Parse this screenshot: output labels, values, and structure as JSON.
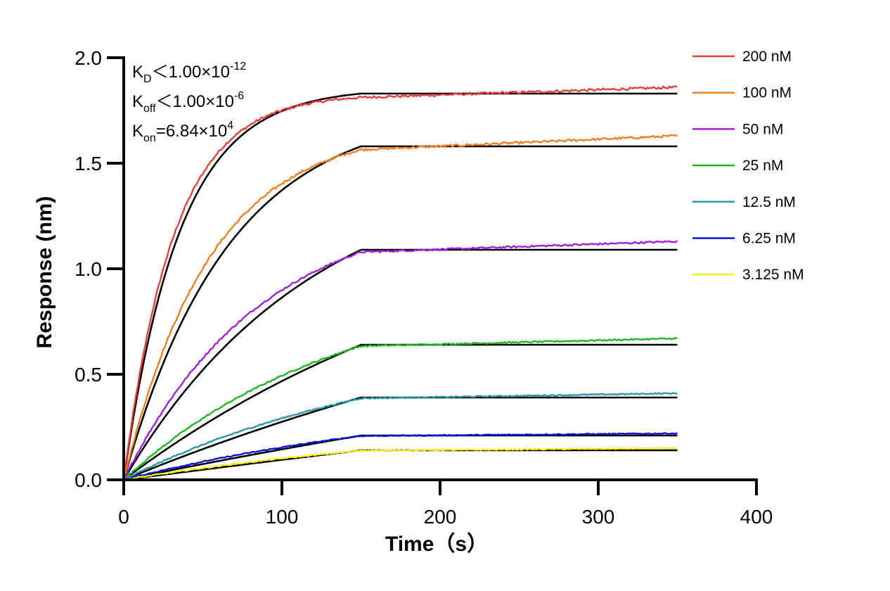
{
  "chart_data": {
    "type": "line",
    "title": "",
    "xlabel": "Time（s）",
    "ylabel": "Response (nm)",
    "xlim": [
      0,
      400
    ],
    "ylim": [
      0,
      2.0
    ],
    "x_ticks": [
      "0",
      "100",
      "200",
      "300",
      "400"
    ],
    "y_ticks": [
      "0.0",
      "0.5",
      "1.0",
      "1.5",
      "2.0"
    ],
    "grid": false,
    "legend_position": "right",
    "association_end_s": 150,
    "end_time_s": 350,
    "annotations": [
      {
        "main": "K",
        "sub": "D",
        "rest": "＜1.00×10",
        "sup": "-12"
      },
      {
        "main": "K",
        "sub": "off",
        "rest": "＜1.00×10",
        "sup": "-6"
      },
      {
        "main": "K",
        "sub": "on",
        "rest": "=6.84×10",
        "sup": "4"
      }
    ],
    "fit_color": "#000000",
    "series": [
      {
        "name": "200 nM",
        "color": "#e8413c",
        "plateau": 1.83,
        "end": 1.86,
        "shape": 0.85
      },
      {
        "name": "100 nM",
        "color": "#f08020",
        "plateau": 1.58,
        "end": 1.63,
        "shape": 0.45
      },
      {
        "name": "50 nM",
        "color": "#a020e0",
        "plateau": 1.09,
        "end": 1.13,
        "shape": 0.25
      },
      {
        "name": "25 nM",
        "color": "#20b820",
        "plateau": 0.64,
        "end": 0.67,
        "shape": 0.12
      },
      {
        "name": "12.5 nM",
        "color": "#2a9aa8",
        "plateau": 0.39,
        "end": 0.41,
        "shape": 0.07
      },
      {
        "name": "6.25 nM",
        "color": "#1010d0",
        "plateau": 0.21,
        "end": 0.22,
        "shape": 0.04
      },
      {
        "name": "3.125 nM",
        "color": "#f5f020",
        "plateau": 0.14,
        "end": 0.15,
        "shape": 0.02
      }
    ]
  }
}
